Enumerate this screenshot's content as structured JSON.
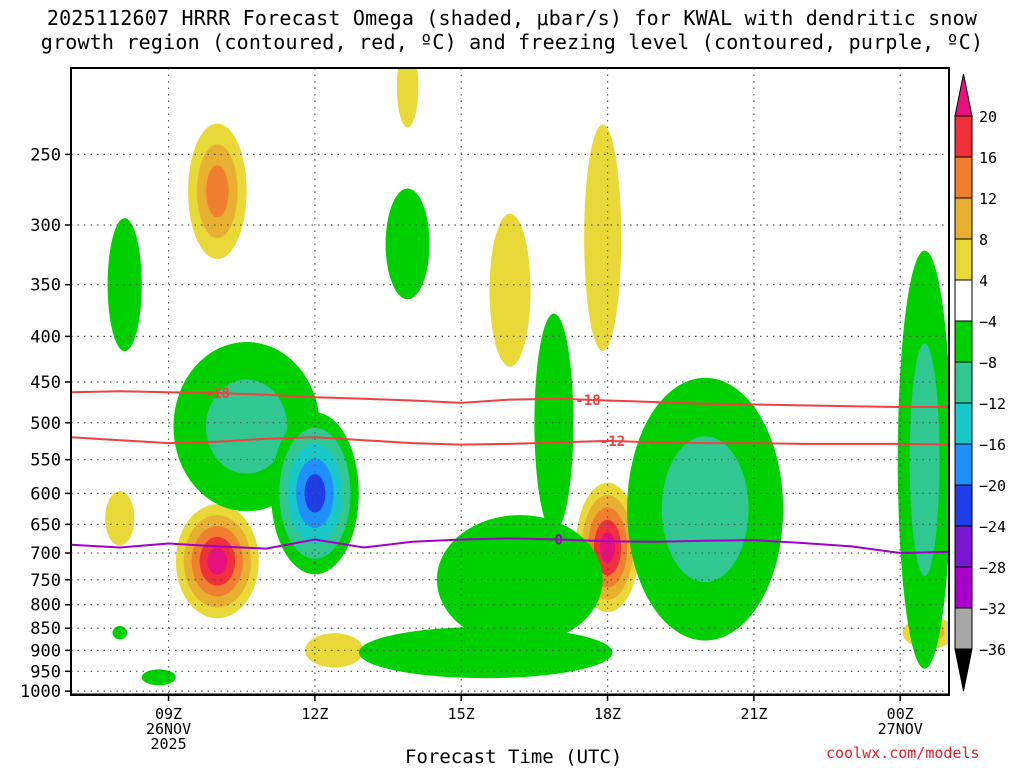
{
  "chart_data": {
    "type": "time-height cross-section",
    "title": {
      "line1": "2025112607 HRRR Forecast Omega (shaded, μbar/s) for KWAL with dendritic snow",
      "line2": "growth region (contoured, red, ºC) and freezing level (contoured, purple, ºC)"
    },
    "xlabel": "Forecast Time (UTC)",
    "credit": "coolwx.com/models",
    "x_range_hours": [
      7,
      25
    ],
    "x_ticks": [
      {
        "hour": 9,
        "label": "09Z",
        "sub1": "26NOV",
        "sub2": "2025"
      },
      {
        "hour": 12,
        "label": "12Z",
        "sub1": "",
        "sub2": ""
      },
      {
        "hour": 15,
        "label": "15Z",
        "sub1": "",
        "sub2": ""
      },
      {
        "hour": 18,
        "label": "18Z",
        "sub1": "",
        "sub2": ""
      },
      {
        "hour": 21,
        "label": "21Z",
        "sub1": "",
        "sub2": ""
      },
      {
        "hour": 24,
        "label": "00Z",
        "sub1": "27NOV",
        "sub2": ""
      }
    ],
    "y_range_hPa": [
      1010,
      200
    ],
    "y_ticks": [
      250,
      300,
      350,
      400,
      450,
      500,
      550,
      600,
      650,
      700,
      750,
      800,
      850,
      900,
      950,
      1000
    ],
    "colorbar": {
      "boundaries": [
        20,
        16,
        12,
        8,
        4,
        -4,
        -8,
        -12,
        -16,
        -20,
        -24,
        -28,
        -32,
        -36
      ],
      "labels": [
        "20",
        "16",
        "12",
        "8",
        "4",
        "−4",
        "−8",
        "−12",
        "−16",
        "−20",
        "−24",
        "−28",
        "−32",
        "−36"
      ],
      "colors": [
        "#f0303a",
        "#f08030",
        "#e8b030",
        "#e8d838",
        "#ffffff",
        "#00d000",
        "#30c890",
        "#18c8c8",
        "#1e90ff",
        "#1e3ce8",
        "#7818d0",
        "#a800c8",
        "#a8a8a8"
      ],
      "top_arrow_color": "#e8107c",
      "bottom_arrow_color": "#000000"
    },
    "omega_features": [
      {
        "t": 10.0,
        "p": 275,
        "rt": 0.6,
        "rp": 48,
        "levels": [
          4,
          8,
          12
        ]
      },
      {
        "t": 13.9,
        "p": 210,
        "rt": 0.22,
        "rp": 22,
        "levels": [
          4
        ]
      },
      {
        "t": 16.0,
        "p": 355,
        "rt": 0.42,
        "rp": 70,
        "levels": [
          4
        ]
      },
      {
        "t": 17.9,
        "p": 310,
        "rt": 0.38,
        "rp": 90,
        "levels": [
          4
        ]
      },
      {
        "t": 8.0,
        "p": 640,
        "rt": 0.3,
        "rp": 45,
        "levels": [
          4
        ]
      },
      {
        "t": 10.0,
        "p": 715,
        "rt": 0.85,
        "rp": 105,
        "levels": [
          4,
          8,
          12,
          16,
          20
        ]
      },
      {
        "t": 18.0,
        "p": 690,
        "rt": 0.65,
        "rp": 115,
        "levels": [
          4,
          8,
          12,
          16,
          20
        ]
      },
      {
        "t": 12.4,
        "p": 900,
        "rt": 0.6,
        "rp": 40,
        "levels": [
          4
        ]
      },
      {
        "t": 24.6,
        "p": 860,
        "rt": 0.55,
        "rp": 35,
        "levels": [
          4,
          8
        ]
      },
      {
        "t": 13.9,
        "p": 315,
        "rt": 0.45,
        "rp": 45,
        "levels": [
          -4
        ]
      },
      {
        "t": 8.1,
        "p": 350,
        "rt": 0.35,
        "rp": 60,
        "levels": [
          -4
        ]
      },
      {
        "t": 10.6,
        "p": 505,
        "rt": 1.5,
        "rp": 110,
        "levels": [
          -4,
          -8
        ]
      },
      {
        "t": 12.0,
        "p": 600,
        "rt": 0.9,
        "rp": 125,
        "levels": [
          -4,
          -8,
          -12,
          -16,
          -20
        ]
      },
      {
        "t": 16.9,
        "p": 500,
        "rt": 0.4,
        "rp": 140,
        "levels": [
          -4
        ]
      },
      {
        "t": 16.2,
        "p": 750,
        "rt": 1.7,
        "rp": 125,
        "levels": [
          -4
        ]
      },
      {
        "t": 15.5,
        "p": 905,
        "rt": 2.6,
        "rp": 60,
        "levels": [
          -4
        ]
      },
      {
        "t": 20.0,
        "p": 625,
        "rt": 1.6,
        "rp": 210,
        "levels": [
          -4,
          -8
        ]
      },
      {
        "t": 24.5,
        "p": 550,
        "rt": 0.55,
        "rp": 290,
        "levels": [
          -4,
          -8
        ]
      },
      {
        "t": 8.0,
        "p": 860,
        "rt": 0.15,
        "rp": 15,
        "levels": [
          -4
        ]
      },
      {
        "t": 8.8,
        "p": 965,
        "rt": 0.35,
        "rp": 20,
        "levels": [
          -4
        ]
      }
    ],
    "temperature_contours": [
      {
        "label": "-18",
        "color": "#f04040",
        "t": [
          7,
          8,
          9,
          10,
          11,
          12,
          13,
          14,
          15,
          16,
          17,
          18,
          19,
          20,
          21,
          22,
          23,
          24,
          25
        ],
        "p": [
          462,
          461,
          462,
          463,
          465,
          468,
          470,
          472,
          475,
          471,
          470,
          472,
          474,
          476,
          477,
          478,
          479,
          480,
          480
        ],
        "label_positions": [
          10.0,
          17.6
        ]
      },
      {
        "label": "-12",
        "color": "#f04040",
        "t": [
          7,
          8,
          9,
          10,
          11,
          12,
          13,
          14,
          15,
          16,
          17,
          18,
          19,
          20,
          21,
          22,
          23,
          24,
          25
        ],
        "p": [
          519,
          523,
          527,
          525,
          521,
          519,
          523,
          527,
          529,
          528,
          526,
          524,
          526,
          527,
          527,
          528,
          528,
          528,
          529
        ],
        "label_positions": [
          18.1
        ]
      },
      {
        "label": "0",
        "color": "#a000c8",
        "t": [
          7,
          8,
          9,
          10,
          11,
          12,
          13,
          14,
          15,
          16,
          17,
          18,
          19,
          20,
          21,
          22,
          23,
          24,
          25
        ],
        "p": [
          685,
          690,
          683,
          688,
          692,
          676,
          690,
          680,
          676,
          674,
          676,
          679,
          680,
          678,
          677,
          682,
          688,
          700,
          698
        ],
        "label_positions": [
          17.0
        ]
      }
    ],
    "terrain": {
      "color": "#a0522d",
      "surface_hPa": 1010
    }
  }
}
